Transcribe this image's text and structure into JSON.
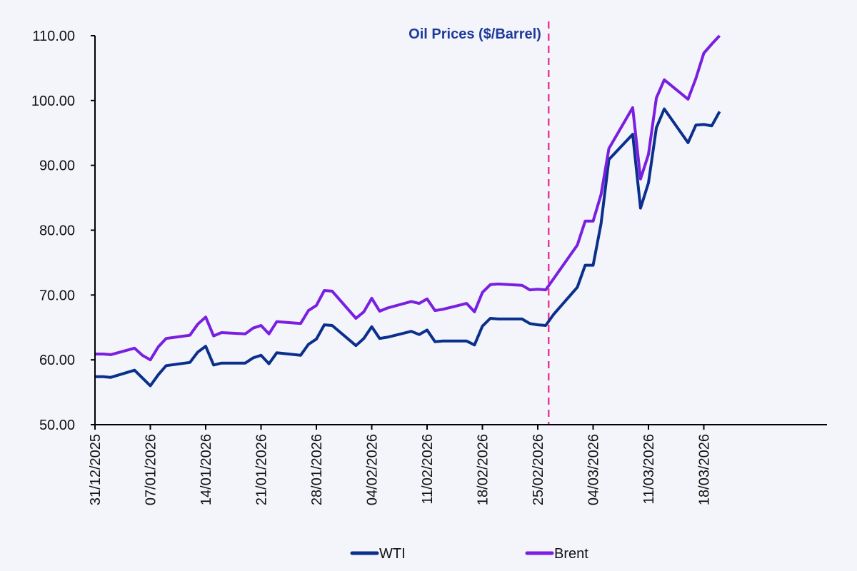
{
  "chart_data": {
    "type": "line",
    "title": "Oil Prices ($/Barrel)",
    "xlabel": "",
    "ylabel": "",
    "ylim": [
      50,
      110
    ],
    "yticks": [
      "50.00",
      "60.00",
      "70.00",
      "80.00",
      "90.00",
      "100.00",
      "110.00"
    ],
    "ytick_values": [
      50,
      60,
      70,
      80,
      90,
      100,
      110
    ],
    "x_start": "2025-12-31",
    "x_end": "2026-03-20",
    "xticks": [
      "31/12/2025",
      "07/01/2026",
      "14/01/2026",
      "21/01/2026",
      "28/01/2026",
      "04/02/2026",
      "11/02/2026",
      "18/02/2026",
      "25/02/2026",
      "04/03/2026",
      "11/03/2026",
      "18/03/2026"
    ],
    "xtick_dates": [
      "2025-12-31",
      "2026-01-07",
      "2026-01-14",
      "2026-01-21",
      "2026-01-28",
      "2026-02-04",
      "2026-02-11",
      "2026-02-18",
      "2026-02-25",
      "2026-03-04",
      "2026-03-11",
      "2026-03-18"
    ],
    "vline": {
      "date": "2026-02-28",
      "color": "#e8399a",
      "style": "dashed"
    },
    "grid": false,
    "legend": "bottom",
    "x": [
      "2025-12-31",
      "2026-01-01",
      "2026-01-02",
      "2026-01-05",
      "2026-01-06",
      "2026-01-07",
      "2026-01-08",
      "2026-01-09",
      "2026-01-12",
      "2026-01-13",
      "2026-01-14",
      "2026-01-15",
      "2026-01-16",
      "2026-01-19",
      "2026-01-20",
      "2026-01-21",
      "2026-01-22",
      "2026-01-23",
      "2026-01-26",
      "2026-01-27",
      "2026-01-28",
      "2026-01-29",
      "2026-01-30",
      "2026-02-02",
      "2026-02-03",
      "2026-02-04",
      "2026-02-05",
      "2026-02-06",
      "2026-02-09",
      "2026-02-10",
      "2026-02-11",
      "2026-02-12",
      "2026-02-13",
      "2026-02-16",
      "2026-02-17",
      "2026-02-18",
      "2026-02-19",
      "2026-02-20",
      "2026-02-23",
      "2026-02-24",
      "2026-02-25",
      "2026-02-26",
      "2026-02-27",
      "2026-03-02",
      "2026-03-03",
      "2026-03-04",
      "2026-03-05",
      "2026-03-06",
      "2026-03-09",
      "2026-03-10",
      "2026-03-11",
      "2026-03-12",
      "2026-03-13",
      "2026-03-16",
      "2026-03-17",
      "2026-03-18",
      "2026-03-19",
      "2026-03-20"
    ],
    "series": [
      {
        "name": "WTI",
        "color": "#0b2f8c",
        "values": [
          57.4,
          57.4,
          57.3,
          58.4,
          57.2,
          56.0,
          57.7,
          59.1,
          59.6,
          61.2,
          62.1,
          59.2,
          59.5,
          59.5,
          60.3,
          60.7,
          59.4,
          61.1,
          60.7,
          62.4,
          63.2,
          65.4,
          65.3,
          62.2,
          63.3,
          65.1,
          63.3,
          63.5,
          64.4,
          63.9,
          64.6,
          62.8,
          62.9,
          62.9,
          62.3,
          65.2,
          66.4,
          66.3,
          66.3,
          65.6,
          65.4,
          65.3,
          67.0,
          71.2,
          74.6,
          74.6,
          81.0,
          90.9,
          94.8,
          83.4,
          87.3,
          95.8,
          98.7,
          93.5,
          96.2,
          96.3,
          96.1,
          98.3
        ]
      },
      {
        "name": "Brent",
        "color": "#7a1fe0",
        "values": [
          60.9,
          60.9,
          60.8,
          61.8,
          60.7,
          60.0,
          62.0,
          63.3,
          63.8,
          65.5,
          66.6,
          63.7,
          64.2,
          64.0,
          64.9,
          65.3,
          64.0,
          65.9,
          65.6,
          67.6,
          68.4,
          70.7,
          70.6,
          66.4,
          67.4,
          69.5,
          67.5,
          68.0,
          69.0,
          68.7,
          69.4,
          67.6,
          67.8,
          68.7,
          67.4,
          70.4,
          71.6,
          71.7,
          71.5,
          70.8,
          70.9,
          70.8,
          72.5,
          77.7,
          81.4,
          81.4,
          85.5,
          92.6,
          98.9,
          87.9,
          91.7,
          100.4,
          103.2,
          100.2,
          103.4,
          107.3,
          108.7,
          110.0
        ]
      }
    ]
  }
}
